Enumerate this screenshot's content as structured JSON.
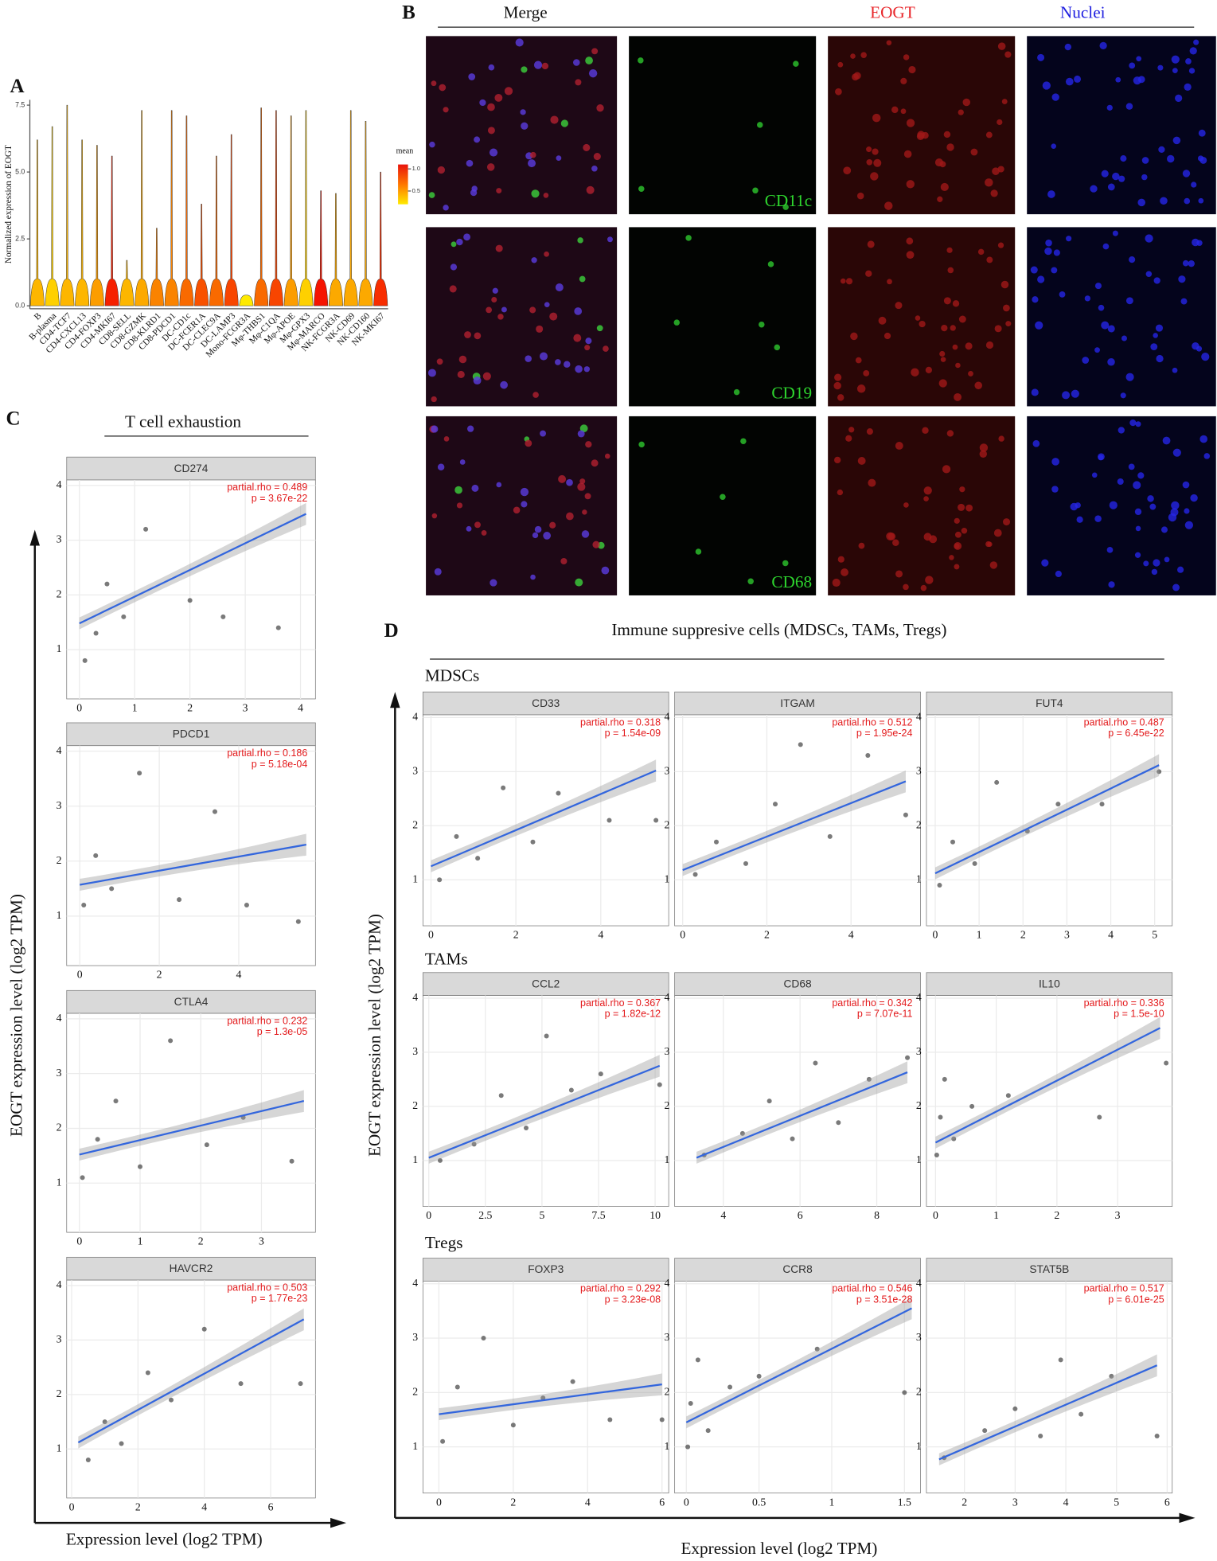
{
  "figure": {
    "panel_labels": [
      "A",
      "B",
      "C",
      "D"
    ],
    "c_title": "T cell exhaustion",
    "d_title": "Immune suppresive cells (MDSCs, TAMs, Tregs)",
    "d_groups": [
      "MDSCs",
      "TAMs",
      "Tregs"
    ],
    "y_label": "EOGT expression level (log2 TPM)",
    "x_label": "Expression level (log2 TPM)"
  },
  "micrographs": {
    "columns": [
      "Merge",
      "EOGT",
      "Nuclei"
    ],
    "rows": [
      "CD11c",
      "CD19",
      "CD68"
    ]
  },
  "chart_data": [
    {
      "type": "violin",
      "ylabel": "Normalized expression of EOGT",
      "categories": [
        "B",
        "B-plasma",
        "CD4-TCF7",
        "CD4-CXCL13",
        "CD4-FOXP3",
        "CD4-MKI67",
        "CD8-SELL",
        "CD8-GZMK",
        "CD8-KLRD1",
        "CD8-PDCD1",
        "DC-CD1c",
        "DC-FCER1A",
        "DC-CLEC9A",
        "DC-LAMP3",
        "Mono-FCGR3A",
        "Mφ-THBS1",
        "Mφ-C1QA",
        "Mφ-APOE",
        "Mφ-GPX3",
        "Mφ-MARCO",
        "NK-FCGR3A",
        "NK-CD69",
        "NK-CD160",
        "NK-MKI67"
      ],
      "max": [
        6.2,
        6.7,
        7.5,
        6.2,
        6.0,
        5.6,
        1.7,
        7.3,
        2.9,
        7.3,
        7.1,
        3.8,
        5.6,
        6.4,
        0.4,
        7.4,
        7.3,
        7.1,
        7.3,
        4.3,
        4.2,
        7.3,
        6.9,
        5.0
      ],
      "mean": [
        0.4,
        0.3,
        0.4,
        0.4,
        0.5,
        1.0,
        0.4,
        0.45,
        0.6,
        0.6,
        0.7,
        0.8,
        0.7,
        0.85,
        0.2,
        0.7,
        0.85,
        0.5,
        0.3,
        1.05,
        0.45,
        0.45,
        0.45,
        0.95
      ],
      "ylim": [
        0,
        7.7
      ],
      "yticks": [
        {
          "value": 0,
          "label": "0.0"
        },
        {
          "value": 2.5,
          "label": "2.5"
        },
        {
          "value": 5,
          "label": "5.0"
        },
        {
          "value": 7.5,
          "label": "7.5"
        }
      ],
      "legend_title": "mean",
      "clim": [
        0.2,
        1.1
      ],
      "cticks": [
        {
          "value": 1,
          "label": "1.0"
        },
        {
          "value": 0.5,
          "label": "0.5"
        }
      ]
    },
    {
      "type": "scatter",
      "title": "CD274",
      "annotation": [
        "partial.rho = 0.489",
        "p = 3.67e-22"
      ],
      "xlim": [
        -0.23,
        4.27
      ],
      "xticks": [
        0,
        1,
        2,
        3,
        4
      ],
      "ylim": [
        0.1,
        4.1
      ],
      "yticks": [
        1,
        2,
        3,
        4
      ],
      "fit_x": [
        0,
        4.1
      ],
      "fit_y": [
        1.48,
        3.48
      ],
      "x": [
        0.1,
        0.3,
        0.5,
        0.8,
        1.2,
        2.0,
        2.6,
        3.6
      ],
      "y": [
        0.8,
        1.3,
        2.2,
        1.6,
        3.2,
        1.9,
        1.6,
        1.4
      ]
    },
    {
      "type": "scatter",
      "title": "PDCD1",
      "annotation": [
        "partial.rho = 0.186",
        "p = 5.18e-04"
      ],
      "xlim": [
        -0.33,
        5.93
      ],
      "xticks": [
        0,
        2,
        4
      ],
      "ylim": [
        0.1,
        4.1
      ],
      "yticks": [
        1,
        2,
        3,
        4
      ],
      "fit_x": [
        0,
        5.7
      ],
      "fit_y": [
        1.57,
        2.3
      ],
      "x": [
        0.1,
        0.4,
        0.8,
        1.5,
        2.5,
        3.4,
        4.2,
        5.5
      ],
      "y": [
        1.2,
        2.1,
        1.5,
        3.6,
        1.3,
        2.9,
        1.2,
        0.9
      ]
    },
    {
      "type": "scatter",
      "title": "CTLA4",
      "annotation": [
        "partial.rho = 0.232",
        "p = 1.3e-05"
      ],
      "xlim": [
        -0.21,
        3.89
      ],
      "xticks": [
        0,
        1,
        2,
        3
      ],
      "ylim": [
        0.1,
        4.1
      ],
      "yticks": [
        1,
        2,
        3,
        4
      ],
      "fit_x": [
        0,
        3.7
      ],
      "fit_y": [
        1.52,
        2.5
      ],
      "x": [
        0.05,
        0.3,
        0.6,
        1.0,
        1.5,
        2.1,
        2.7,
        3.5
      ],
      "y": [
        1.1,
        1.8,
        2.5,
        1.3,
        3.6,
        1.7,
        2.2,
        1.4
      ]
    },
    {
      "type": "scatter",
      "title": "HAVCR2",
      "annotation": [
        "partial.rho = 0.503",
        "p = 1.77e-23"
      ],
      "xlim": [
        -0.15,
        7.35
      ],
      "xticks": [
        0,
        2,
        4,
        6
      ],
      "ylim": [
        0.1,
        4.1
      ],
      "yticks": [
        1,
        2,
        3,
        4
      ],
      "fit_x": [
        0.2,
        7
      ],
      "fit_y": [
        1.12,
        3.38
      ],
      "x": [
        0.5,
        1.0,
        1.5,
        2.3,
        3.0,
        4.0,
        5.1,
        6.9
      ],
      "y": [
        0.8,
        1.5,
        1.1,
        2.4,
        1.9,
        3.2,
        2.2,
        2.2
      ]
    },
    {
      "type": "scatter",
      "title": "CD33",
      "annotation": [
        "partial.rho = 0.318",
        "p = 1.54e-09"
      ],
      "xlim": [
        -0.19,
        5.6
      ],
      "xticks": [
        0,
        2,
        4
      ],
      "ylim": [
        0.15,
        4.05
      ],
      "yticks": [
        1,
        2,
        3,
        4
      ],
      "fit_x": [
        0,
        5.3
      ],
      "fit_y": [
        1.25,
        3.02
      ],
      "x": [
        0.2,
        0.6,
        1.1,
        1.7,
        2.4,
        3.0,
        4.2,
        5.3
      ],
      "y": [
        1.0,
        1.8,
        1.4,
        2.7,
        1.7,
        2.6,
        2.1,
        2.1
      ]
    },
    {
      "type": "scatter",
      "title": "ITGAM",
      "annotation": [
        "partial.rho = 0.512",
        "p = 1.95e-24"
      ],
      "xlim": [
        -0.19,
        5.65
      ],
      "xticks": [
        0,
        2,
        4
      ],
      "ylim": [
        0.15,
        4.05
      ],
      "yticks": [
        1,
        2,
        3,
        4
      ],
      "fit_x": [
        0,
        5.3
      ],
      "fit_y": [
        1.18,
        2.82
      ],
      "x": [
        0.3,
        0.8,
        1.5,
        2.2,
        2.8,
        3.5,
        4.4,
        5.3
      ],
      "y": [
        1.1,
        1.7,
        1.3,
        2.4,
        3.5,
        1.8,
        3.3,
        2.2
      ]
    },
    {
      "type": "scatter",
      "title": "FUT4",
      "annotation": [
        "partial.rho = 0.487",
        "p = 6.45e-22"
      ],
      "xlim": [
        -0.2,
        5.4
      ],
      "xticks": [
        0,
        1,
        2,
        3,
        4,
        5
      ],
      "ylim": [
        0.15,
        4.05
      ],
      "yticks": [
        1,
        2,
        3,
        4
      ],
      "fit_x": [
        0,
        5.1
      ],
      "fit_y": [
        1.12,
        3.12
      ],
      "x": [
        0.1,
        0.4,
        0.9,
        1.4,
        2.1,
        2.8,
        3.8,
        5.1
      ],
      "y": [
        0.9,
        1.7,
        1.3,
        2.8,
        1.9,
        2.4,
        2.4,
        3.0
      ]
    },
    {
      "type": "scatter",
      "title": "CCL2",
      "annotation": [
        "partial.rho = 0.367",
        "p = 1.82e-12"
      ],
      "xlim": [
        -0.26,
        10.6
      ],
      "xticks": [
        0,
        2.5,
        5,
        7.5,
        10
      ],
      "ylim": [
        0.15,
        4.05
      ],
      "yticks": [
        1,
        2,
        3,
        4
      ],
      "fit_x": [
        0,
        10.2
      ],
      "fit_y": [
        1.05,
        2.75
      ],
      "x": [
        0.5,
        2.0,
        3.2,
        4.3,
        5.2,
        6.3,
        7.6,
        10.2
      ],
      "y": [
        1.0,
        1.3,
        2.2,
        1.6,
        3.3,
        2.3,
        2.6,
        2.4
      ]
    },
    {
      "type": "scatter",
      "title": "CD68",
      "annotation": [
        "partial.rho = 0.342",
        "p = 7.07e-11"
      ],
      "xlim": [
        2.73,
        9.14
      ],
      "xticks": [
        4,
        6,
        8
      ],
      "ylim": [
        0.15,
        4.05
      ],
      "yticks": [
        1,
        2,
        3,
        4
      ],
      "fit_x": [
        3.3,
        8.8
      ],
      "fit_y": [
        1.05,
        2.63
      ],
      "x": [
        3.5,
        4.5,
        5.2,
        5.8,
        6.4,
        7.0,
        7.8,
        8.8
      ],
      "y": [
        1.1,
        1.5,
        2.1,
        1.4,
        2.8,
        1.7,
        2.5,
        2.9
      ]
    },
    {
      "type": "scatter",
      "title": "IL10",
      "annotation": [
        "partial.rho = 0.336",
        "p = 1.5e-10"
      ],
      "xlim": [
        -0.15,
        3.9
      ],
      "xticks": [
        0,
        1,
        2,
        3
      ],
      "ylim": [
        0.15,
        4.05
      ],
      "yticks": [
        1,
        2,
        3,
        4
      ],
      "fit_x": [
        0,
        3.7
      ],
      "fit_y": [
        1.33,
        3.45
      ],
      "x": [
        0.02,
        0.08,
        0.15,
        0.3,
        0.6,
        1.2,
        2.7,
        3.8
      ],
      "y": [
        1.1,
        1.8,
        2.5,
        1.4,
        2.0,
        2.2,
        1.8,
        2.8
      ]
    },
    {
      "type": "scatter",
      "title": "FOXP3",
      "annotation": [
        "partial.rho = 0.292",
        "p = 3.23e-08"
      ],
      "xlim": [
        -0.43,
        6.18
      ],
      "xticks": [
        0,
        2,
        4,
        6
      ],
      "ylim": [
        0.15,
        4.05
      ],
      "yticks": [
        1,
        2,
        3,
        4
      ],
      "fit_x": [
        0,
        6
      ],
      "fit_y": [
        1.6,
        2.15
      ],
      "x": [
        0.1,
        0.5,
        1.2,
        2.0,
        2.8,
        3.6,
        4.6,
        6.0
      ],
      "y": [
        1.1,
        2.1,
        3.0,
        1.4,
        1.9,
        2.2,
        1.5,
        1.5
      ]
    },
    {
      "type": "scatter",
      "title": "CCR8",
      "annotation": [
        "partial.rho = 0.546",
        "p = 3.51e-28"
      ],
      "xlim": [
        -0.08,
        1.61
      ],
      "xticks": [
        0,
        0.5,
        1,
        1.5
      ],
      "ylim": [
        0.15,
        4.05
      ],
      "yticks": [
        1,
        2,
        3,
        4
      ],
      "fit_x": [
        0,
        1.55
      ],
      "fit_y": [
        1.45,
        3.55
      ],
      "x": [
        0.01,
        0.03,
        0.08,
        0.15,
        0.3,
        0.5,
        0.9,
        1.5
      ],
      "y": [
        1.0,
        1.8,
        2.6,
        1.3,
        2.1,
        2.3,
        2.8,
        2.0
      ]
    },
    {
      "type": "scatter",
      "title": "STAT5B",
      "annotation": [
        "partial.rho = 0.517",
        "p = 6.01e-25"
      ],
      "xlim": [
        1.25,
        6.1
      ],
      "xticks": [
        2,
        3,
        4,
        5,
        6
      ],
      "ylim": [
        0.15,
        4.05
      ],
      "yticks": [
        1,
        2,
        3,
        4
      ],
      "fit_x": [
        1.5,
        5.8
      ],
      "fit_y": [
        0.77,
        2.5
      ],
      "x": [
        1.6,
        2.4,
        3.0,
        3.5,
        3.9,
        4.3,
        4.9,
        5.8
      ],
      "y": [
        0.8,
        1.3,
        1.7,
        1.2,
        2.6,
        1.6,
        2.3,
        1.2
      ]
    }
  ]
}
